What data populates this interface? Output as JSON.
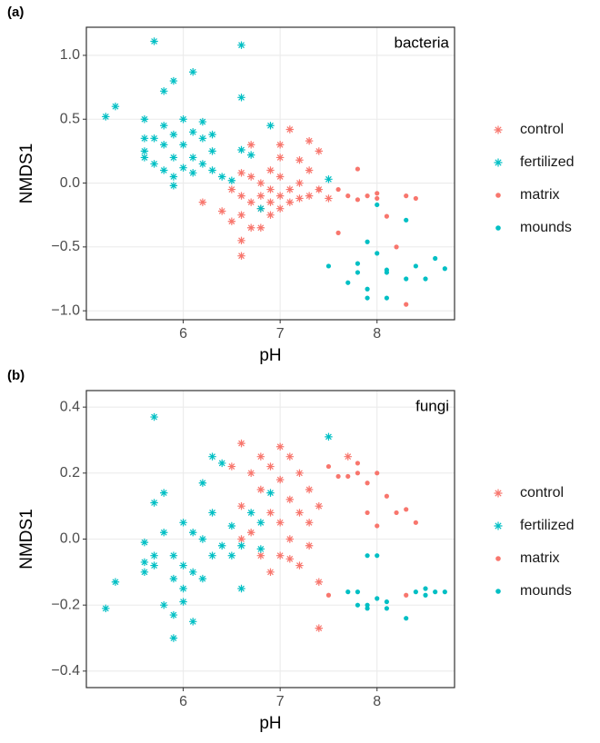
{
  "chart_data": [
    {
      "type": "scatter",
      "panel_label": "(a)",
      "annotation": "bacteria",
      "x_label": "pH",
      "y_label": "NMDS1",
      "xlim": [
        5.0,
        8.8
      ],
      "xticks": [
        6,
        7,
        8
      ],
      "ylim": [
        -1.07,
        1.22
      ],
      "yticks": [
        {
          "value": -1.0,
          "label": "−1.0"
        },
        {
          "value": -0.5,
          "label": "−0.5"
        },
        {
          "value": 0.0,
          "label": "0.0"
        },
        {
          "value": 0.5,
          "label": "0.5"
        },
        {
          "value": 1.0,
          "label": "1.0"
        }
      ],
      "grid": true,
      "series": [
        {
          "name": "control",
          "color": "#F8766D",
          "marker": "asterisk",
          "x": [
            6.2,
            6.4,
            6.5,
            6.5,
            6.6,
            6.6,
            6.6,
            6.6,
            6.7,
            6.7,
            6.7,
            6.7,
            6.8,
            6.8,
            6.8,
            6.9,
            6.9,
            6.9,
            7.0,
            7.0,
            7.0,
            7.0,
            7.1,
            7.1,
            7.1,
            7.2,
            7.2,
            7.2,
            7.3,
            7.3,
            7.3,
            7.4,
            7.4,
            7.5,
            6.6,
            6.8,
            7.0,
            6.9
          ],
          "values": [
            -0.15,
            -0.22,
            -0.3,
            -0.05,
            0.08,
            -0.1,
            -0.45,
            -0.57,
            0.3,
            0.05,
            -0.15,
            -0.35,
            -0.1,
            -0.2,
            0.0,
            -0.15,
            -0.05,
            0.1,
            0.05,
            -0.2,
            -0.1,
            0.2,
            0.42,
            -0.05,
            -0.15,
            0.18,
            -0.12,
            0.0,
            0.1,
            -0.1,
            0.33,
            -0.05,
            0.25,
            -0.12,
            -0.25,
            -0.35,
            0.3,
            -0.25
          ]
        },
        {
          "name": "fertilized",
          "color": "#00BFC4",
          "marker": "asterisk",
          "x": [
            5.7,
            6.6,
            6.1,
            5.9,
            5.8,
            5.3,
            5.2,
            6.6,
            6.9,
            7.5,
            6.5,
            6.8,
            6.7,
            6.6,
            6.4,
            5.9,
            5.6,
            5.6,
            5.6,
            5.6,
            5.7,
            5.7,
            5.8,
            5.8,
            5.8,
            5.9,
            5.9,
            5.9,
            6.0,
            6.0,
            6.0,
            6.1,
            6.1,
            6.1,
            6.2,
            6.2,
            6.2,
            6.3,
            6.3,
            6.3
          ],
          "values": [
            1.11,
            1.08,
            0.87,
            0.8,
            0.72,
            0.6,
            0.52,
            0.67,
            0.45,
            0.03,
            0.02,
            -0.2,
            0.22,
            0.26,
            0.05,
            -0.02,
            0.35,
            0.5,
            0.25,
            0.2,
            0.35,
            0.15,
            0.45,
            0.3,
            0.1,
            0.38,
            0.2,
            0.05,
            0.5,
            0.3,
            0.12,
            0.4,
            0.2,
            0.08,
            0.35,
            0.15,
            0.48,
            0.25,
            0.1,
            0.38
          ]
        },
        {
          "name": "matrix",
          "color": "#F8766D",
          "marker": "dot",
          "x": [
            7.8,
            7.6,
            7.7,
            7.8,
            7.9,
            8.0,
            8.1,
            8.3,
            8.4,
            7.6,
            8.2,
            8.3,
            7.4,
            8.0
          ],
          "values": [
            0.11,
            -0.05,
            -0.1,
            -0.13,
            -0.1,
            -0.12,
            -0.26,
            -0.1,
            -0.12,
            -0.39,
            -0.5,
            -0.95,
            -0.05,
            -0.08
          ]
        },
        {
          "name": "mounds",
          "color": "#00BFC4",
          "marker": "dot",
          "x": [
            7.5,
            7.7,
            7.8,
            7.9,
            8.0,
            7.9,
            7.9,
            8.1,
            8.1,
            8.3,
            8.4,
            8.5,
            8.6,
            8.7,
            8.0,
            8.3,
            7.8,
            8.1
          ],
          "values": [
            -0.65,
            -0.78,
            -0.7,
            -0.46,
            -0.55,
            -0.83,
            -0.9,
            -0.68,
            -0.9,
            -0.75,
            -0.65,
            -0.75,
            -0.59,
            -0.67,
            -0.17,
            -0.29,
            -0.63,
            -0.7
          ]
        }
      ]
    },
    {
      "type": "scatter",
      "panel_label": "(b)",
      "annotation": "fungi",
      "x_label": "pH",
      "y_label": "NMDS1",
      "xlim": [
        5.0,
        8.8
      ],
      "xticks": [
        6,
        7,
        8
      ],
      "ylim": [
        -0.45,
        0.45
      ],
      "yticks": [
        {
          "value": -0.4,
          "label": "−0.4"
        },
        {
          "value": -0.2,
          "label": "−0.2"
        },
        {
          "value": 0.0,
          "label": "0.0"
        },
        {
          "value": 0.2,
          "label": "0.2"
        },
        {
          "value": 0.4,
          "label": "0.4"
        }
      ],
      "grid": true,
      "series": [
        {
          "name": "control",
          "color": "#F8766D",
          "marker": "asterisk",
          "x": [
            6.5,
            6.6,
            6.6,
            6.7,
            6.7,
            6.8,
            6.8,
            6.9,
            6.9,
            6.9,
            7.0,
            7.0,
            7.0,
            7.1,
            7.1,
            7.1,
            7.2,
            7.2,
            7.2,
            7.3,
            7.3,
            7.3,
            7.4,
            7.4,
            7.4,
            7.7,
            6.8,
            7.0,
            6.6,
            7.1
          ],
          "values": [
            0.22,
            0.29,
            0.1,
            0.2,
            0.02,
            0.15,
            -0.05,
            0.22,
            0.08,
            -0.1,
            0.18,
            0.05,
            -0.05,
            0.25,
            0.12,
            0.0,
            0.2,
            0.08,
            -0.08,
            0.15,
            0.05,
            -0.02,
            0.1,
            -0.13,
            -0.27,
            0.25,
            0.25,
            0.28,
            0.0,
            -0.06
          ]
        },
        {
          "name": "fertilized",
          "color": "#00BFC4",
          "marker": "asterisk",
          "x": [
            5.7,
            5.2,
            5.3,
            5.9,
            7.5,
            6.3,
            6.4,
            6.2,
            5.8,
            5.7,
            6.0,
            5.6,
            5.6,
            5.7,
            5.8,
            5.9,
            6.0,
            6.1,
            6.1,
            6.2,
            6.3,
            6.5,
            6.6,
            6.7,
            6.8,
            6.9,
            6.8,
            5.9,
            6.0,
            5.8,
            6.1,
            6.2,
            6.4,
            6.5,
            5.7,
            6.0,
            6.3,
            6.6,
            5.6,
            5.9
          ],
          "values": [
            0.37,
            -0.21,
            -0.13,
            -0.3,
            0.31,
            0.25,
            0.23,
            0.17,
            0.14,
            0.11,
            0.05,
            -0.1,
            -0.01,
            -0.08,
            -0.2,
            -0.23,
            -0.15,
            -0.25,
            -0.1,
            0.0,
            -0.05,
            0.04,
            -0.15,
            0.08,
            0.05,
            0.14,
            -0.03,
            -0.05,
            -0.08,
            0.02,
            0.02,
            -0.12,
            -0.02,
            -0.05,
            -0.05,
            -0.19,
            0.08,
            -0.02,
            -0.07,
            -0.12
          ]
        },
        {
          "name": "matrix",
          "color": "#F8766D",
          "marker": "dot",
          "x": [
            7.5,
            7.6,
            7.8,
            8.0,
            7.7,
            7.9,
            8.0,
            8.2,
            8.3,
            8.4,
            8.1,
            7.9,
            8.3,
            7.5,
            7.8
          ],
          "values": [
            0.22,
            0.19,
            0.2,
            0.2,
            0.19,
            0.08,
            0.04,
            0.08,
            0.09,
            0.05,
            0.13,
            0.17,
            -0.17,
            -0.17,
            0.23
          ]
        },
        {
          "name": "mounds",
          "color": "#00BFC4",
          "marker": "dot",
          "x": [
            7.7,
            7.8,
            7.9,
            7.9,
            8.0,
            8.0,
            8.1,
            8.1,
            8.3,
            8.4,
            8.5,
            8.6,
            8.7,
            7.8,
            7.9,
            8.5
          ],
          "values": [
            -0.16,
            -0.16,
            -0.2,
            -0.05,
            -0.05,
            -0.18,
            -0.19,
            -0.21,
            -0.24,
            -0.16,
            -0.17,
            -0.16,
            -0.16,
            -0.2,
            -0.21,
            -0.15
          ]
        }
      ]
    }
  ]
}
